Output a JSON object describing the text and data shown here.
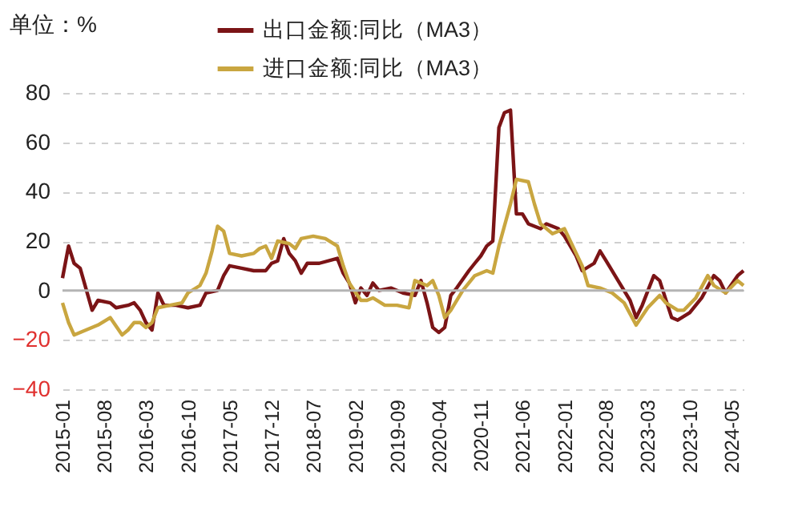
{
  "chart_data": {
    "type": "line",
    "annotations": [
      "单位：%"
    ],
    "xlim": [
      "2015-01",
      "2024-07"
    ],
    "xticks": [
      "2015-01",
      "2015-08",
      "2016-03",
      "2016-10",
      "2017-05",
      "2017-12",
      "2018-07",
      "2019-02",
      "2019-09",
      "2020-04",
      "2020-11",
      "2021-06",
      "2022-01",
      "2022-08",
      "2023-03",
      "2023-10",
      "2024-05"
    ],
    "ylim": [
      -40,
      80
    ],
    "yticks": [
      -40,
      -20,
      0,
      20,
      40,
      60,
      80
    ],
    "grid": "y",
    "legend": "top",
    "line_style": "solid",
    "ref_lines": [
      {
        "axis": "y",
        "value": 0,
        "color": "#b4b4b4"
      }
    ],
    "series": [
      {
        "name": "出口金额:同比（MA3）",
        "color": "#7b1416",
        "x": [
          "2015-01",
          "2015-02",
          "2015-03",
          "2015-04",
          "2015-06",
          "2015-07",
          "2015-09",
          "2015-10",
          "2015-12",
          "2016-01",
          "2016-02",
          "2016-03",
          "2016-04",
          "2016-05",
          "2016-06",
          "2016-08",
          "2016-10",
          "2016-12",
          "2017-01",
          "2017-03",
          "2017-04",
          "2017-05",
          "2017-07",
          "2017-09",
          "2017-11",
          "2017-12",
          "2018-01",
          "2018-02",
          "2018-03",
          "2018-04",
          "2018-05",
          "2018-06",
          "2018-08",
          "2018-11",
          "2018-12",
          "2019-01",
          "2019-02",
          "2019-03",
          "2019-04",
          "2019-05",
          "2019-06",
          "2019-08",
          "2019-10",
          "2019-12",
          "2020-01",
          "2020-02",
          "2020-03",
          "2020-04",
          "2020-05",
          "2020-06",
          "2020-07",
          "2020-09",
          "2020-10",
          "2020-11",
          "2020-12",
          "2021-01",
          "2021-02",
          "2021-03",
          "2021-04",
          "2021-05",
          "2021-06",
          "2021-07",
          "2021-09",
          "2021-10",
          "2021-12",
          "2022-01",
          "2022-03",
          "2022-04",
          "2022-06",
          "2022-07",
          "2022-08",
          "2022-10",
          "2022-12",
          "2023-01",
          "2023-02",
          "2023-04",
          "2023-05",
          "2023-07",
          "2023-08",
          "2023-10",
          "2023-12",
          "2024-02",
          "2024-03",
          "2024-04",
          "2024-06",
          "2024-07"
        ],
        "values": [
          5,
          18,
          11,
          9,
          -8,
          -4,
          -5,
          -7,
          -6,
          -5,
          -8,
          -13,
          -16,
          -1,
          -6,
          -6,
          -7,
          -6,
          -1,
          0,
          6,
          10,
          9,
          8,
          8,
          11,
          12,
          21,
          15,
          12,
          7,
          11,
          11,
          13,
          7,
          3,
          -5,
          1,
          -2,
          3,
          0,
          1,
          -1,
          -2,
          4,
          -5,
          -15,
          -17,
          -15,
          -2,
          1,
          8,
          11,
          14,
          18,
          20,
          66,
          72,
          73,
          31,
          31,
          27,
          25,
          27,
          25,
          22,
          14,
          8,
          11,
          16,
          12,
          4,
          -4,
          -11,
          -6,
          6,
          4,
          -11,
          -12,
          -9,
          -3,
          6,
          4,
          -1,
          6,
          8
        ]
      },
      {
        "name": "进口金额:同比（MA3）",
        "color": "#c9a640",
        "x": [
          "2015-01",
          "2015-02",
          "2015-03",
          "2015-05",
          "2015-07",
          "2015-09",
          "2015-11",
          "2015-12",
          "2016-01",
          "2016-02",
          "2016-03",
          "2016-04",
          "2016-05",
          "2016-07",
          "2016-09",
          "2016-10",
          "2016-12",
          "2017-01",
          "2017-02",
          "2017-03",
          "2017-04",
          "2017-05",
          "2017-07",
          "2017-09",
          "2017-10",
          "2017-11",
          "2017-12",
          "2018-01",
          "2018-03",
          "2018-04",
          "2018-05",
          "2018-07",
          "2018-09",
          "2018-11",
          "2018-12",
          "2019-01",
          "2019-03",
          "2019-04",
          "2019-05",
          "2019-07",
          "2019-09",
          "2019-11",
          "2019-12",
          "2020-02",
          "2020-03",
          "2020-04",
          "2020-05",
          "2020-06",
          "2020-08",
          "2020-10",
          "2020-12",
          "2021-01",
          "2021-02",
          "2021-04",
          "2021-05",
          "2021-07",
          "2021-08",
          "2021-09",
          "2021-11",
          "2022-01",
          "2022-04",
          "2022-05",
          "2022-07",
          "2022-09",
          "2022-11",
          "2023-01",
          "2023-03",
          "2023-05",
          "2023-06",
          "2023-08",
          "2023-09",
          "2023-11",
          "2024-01",
          "2024-02",
          "2024-04",
          "2024-06",
          "2024-07"
        ],
        "values": [
          -5,
          -13,
          -18,
          -16,
          -14,
          -11,
          -18,
          -16,
          -13,
          -13,
          -15,
          -13,
          -7,
          -6,
          -5,
          -1,
          2,
          7,
          16,
          26,
          24,
          15,
          14,
          15,
          17,
          18,
          13,
          20,
          19,
          17,
          21,
          22,
          21,
          18,
          10,
          3,
          -4,
          -4,
          -3,
          -6,
          -6,
          -7,
          4,
          2,
          4,
          -2,
          -11,
          -8,
          0,
          6,
          8,
          7,
          18,
          35,
          45,
          44,
          35,
          27,
          23,
          25,
          10,
          2,
          1,
          -1,
          -5,
          -14,
          -7,
          -2,
          -5,
          -8,
          -8,
          -3,
          6,
          2,
          -1,
          4,
          2
        ]
      }
    ]
  }
}
